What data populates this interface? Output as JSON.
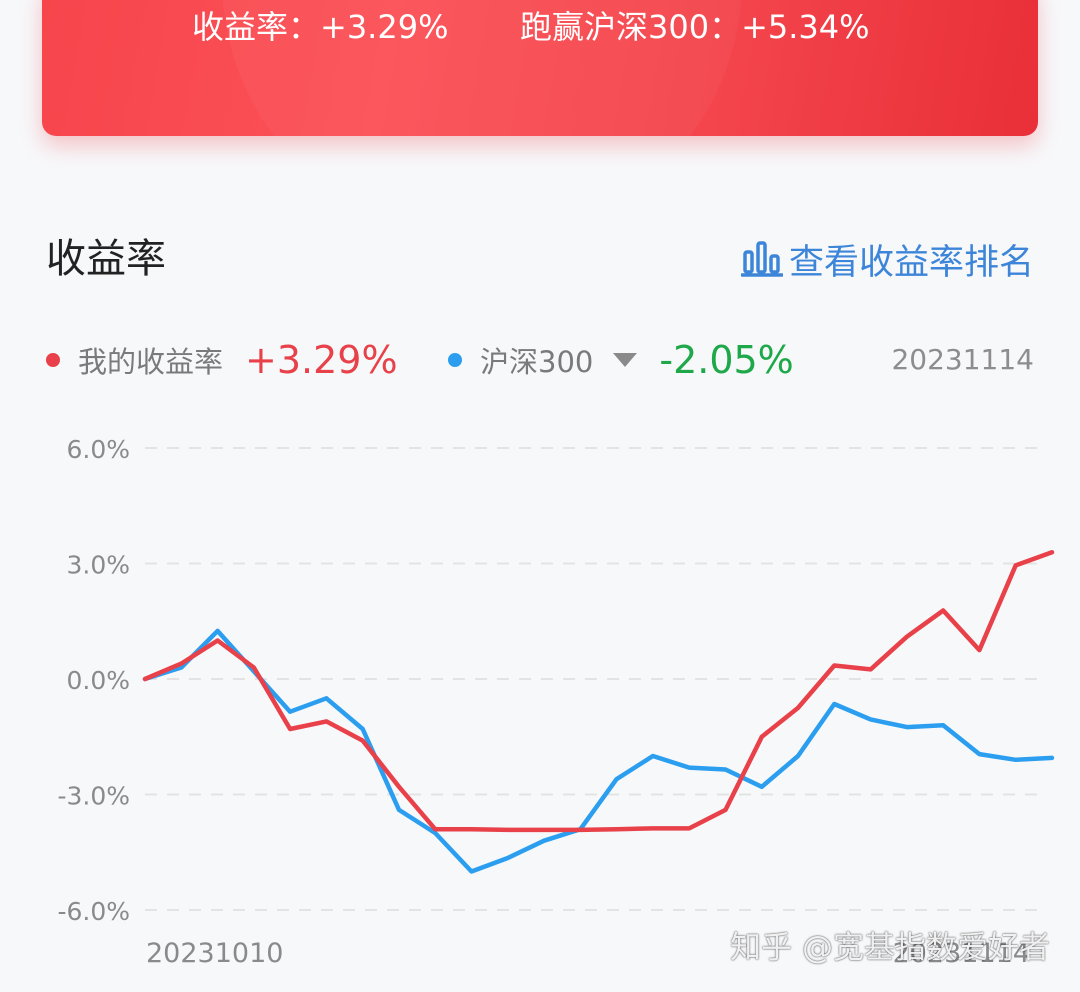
{
  "banner": {
    "return_text": "收益率：+3.29%",
    "beat_text": "跑赢沪深300：+5.34%",
    "color": "#f5444b"
  },
  "section": {
    "title": "收益率",
    "rank_link": "查看收益率排名",
    "rank_icon": "bar-chart-icon"
  },
  "legend": {
    "my": {
      "label": "我的收益率",
      "value": "+3.29%",
      "color": "#e84149"
    },
    "hs300": {
      "label": "沪深300",
      "value": "-2.05%",
      "color": "#2b9ef0",
      "value_color": "#1ea84a"
    },
    "date": "20231114"
  },
  "watermark": "知乎 @宽基指数爱好者",
  "chart_data": {
    "type": "line",
    "x_start_label": "20231010",
    "x_end_label": "20231114",
    "ylim": [
      -6,
      6
    ],
    "yticks": [
      "6.0%",
      "3.0%",
      "0.0%",
      "-3.0%",
      "-6.0%"
    ],
    "ytick_values": [
      6,
      3,
      0,
      -3,
      -6
    ],
    "grid": true,
    "series": [
      {
        "name": "我的收益率",
        "color": "#e84149",
        "values": [
          0.0,
          0.4,
          1.0,
          0.3,
          -1.3,
          -1.1,
          -1.6,
          -2.8,
          -3.9,
          -3.9,
          -3.92,
          -3.92,
          -3.92,
          -3.9,
          -3.88,
          -3.88,
          -3.4,
          -1.5,
          -0.75,
          0.35,
          0.25,
          1.1,
          1.78,
          0.75,
          2.95,
          3.29
        ]
      },
      {
        "name": "沪深300",
        "color": "#2b9ef0",
        "values": [
          0.0,
          0.3,
          1.25,
          0.2,
          -0.85,
          -0.5,
          -1.3,
          -3.4,
          -4.0,
          -5.0,
          -4.65,
          -4.2,
          -3.9,
          -2.6,
          -2.0,
          -2.3,
          -2.35,
          -2.8,
          -2.0,
          -0.65,
          -1.05,
          -1.25,
          -1.2,
          -1.95,
          -2.1,
          -2.05
        ]
      }
    ]
  }
}
